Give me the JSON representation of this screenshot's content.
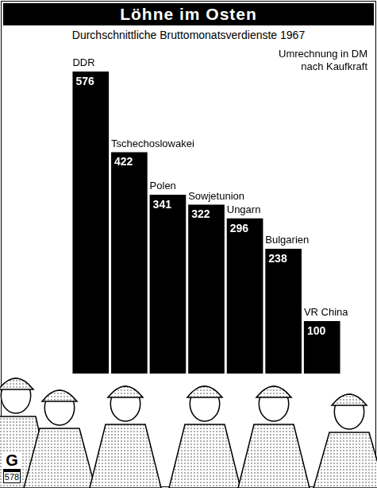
{
  "chart_data": {
    "type": "bar",
    "title": "Löhne im Osten",
    "subtitle": "Durchschnittliche Bruttomonatsverdienste 1967",
    "annotations": [
      "Umrechnung in DM nach Kaufkraft"
    ],
    "categories": [
      "DDR",
      "Tschechoslowakei",
      "Polen",
      "Sowjetunion",
      "Ungarn",
      "Bulgarien",
      "VR China"
    ],
    "values": [
      576,
      422,
      341,
      322,
      296,
      238,
      100
    ],
    "color": "#000000",
    "data_labels": true,
    "tick_labels": false,
    "grid": false
  },
  "publisher_mark": {
    "letter": "G",
    "number": "578"
  }
}
